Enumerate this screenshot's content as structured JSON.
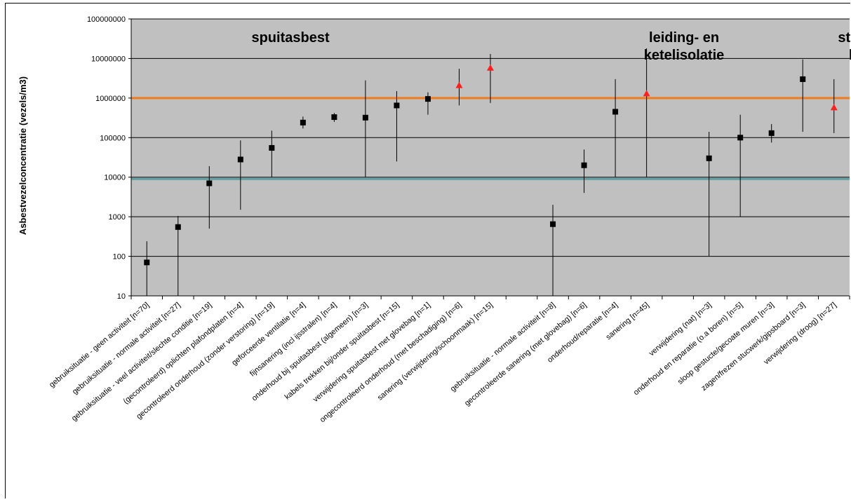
{
  "chart_data": {
    "type": "scatter",
    "ylabel": "Asbestvezelconcentratie (vezels/m3)",
    "yscale": "log",
    "ylim": [
      10,
      100000000
    ],
    "yticks": [
      {
        "value": 10,
        "label": "10"
      },
      {
        "value": 100,
        "label": "100"
      },
      {
        "value": 1000,
        "label": "1000"
      },
      {
        "value": 10000,
        "label": "10000"
      },
      {
        "value": 100000,
        "label": "100000"
      },
      {
        "value": 1000000,
        "label": "1000000"
      },
      {
        "value": 10000000,
        "label": "10000000"
      },
      {
        "value": 100000000,
        "label": "100000000"
      }
    ],
    "grid": true,
    "plot_background": "#c0c0c0",
    "group_labels": [
      {
        "lines": [
          "spuitasbest"
        ],
        "x_index": 4.6
      },
      {
        "lines": [
          "leiding- en",
          "ketelisolatie"
        ],
        "x_index": 17.2
      },
      {
        "lines": [
          "stucwerk",
          "board"
        ],
        "x_index": 23.1
      }
    ],
    "reference_lines": [
      {
        "value": 1000000,
        "color": "#f07c1e"
      },
      {
        "value": 9000,
        "color": "#5f9ea0"
      }
    ],
    "categories": [
      "gebruiksituatie - geen activiteit [n=70]",
      "gebruiksituatie - normale activiteit [n=27]",
      "gebruiksituatie - veel activiteit/slechte conditie [n=19]",
      "(gecontroleerd) oplichten plafondplaten [n=4]",
      "gecontroleerd onderhoud (zonder verstoring) [n=19]",
      "geforceerde ventilatie [n=4]",
      "fijnsanering (incl ijsstralen) [n=4]",
      "onderhoud bij spuitasbest (algemeen) [n=3]",
      "kabels trekken bij/onder spuitasbest [n=15]",
      "verwijdering spuitasbest met glovebag [n=1]",
      "ongecontroleerd onderhoud (met beschadiging) [n=6]",
      "sanering (verwijdering/schoonmaak) [n=15]",
      "",
      "gebruiksituatie - normale activiteit [n=8]",
      "gecontroleerde sanering (met glovebag) [n=6]",
      "onderhoud/reparatie [n=4]",
      "sanering [n=45]",
      "",
      "verwijdering  (nat) [n=3]",
      "onderhoud en reparatie (o.a boren) [n=5]",
      "sloop gestucte/gecoate muren [n=3]",
      "zagen/frezen stucwerk/gipsboard [n=3]",
      "verwijdering (droog) [n=27]"
    ],
    "series": [
      {
        "marker": "square",
        "color": "#000000",
        "points": [
          {
            "x": 0.0,
            "y": 70,
            "low": 10,
            "high": 240
          },
          {
            "x": 1.0,
            "y": 550,
            "low": 10,
            "high": 1050
          },
          {
            "x": 2.0,
            "y": 7000,
            "low": 500,
            "high": 19000
          },
          {
            "x": 3.0,
            "y": 28000,
            "low": 1500,
            "high": 85000
          },
          {
            "x": 4.0,
            "y": 55000,
            "low": 10000,
            "high": 150000
          },
          {
            "x": 5.0,
            "y": 240000,
            "low": 170000,
            "high": 340000
          },
          {
            "x": 6.0,
            "y": 330000,
            "low": 250000,
            "high": 420000
          },
          {
            "x": 7.0,
            "y": 320000,
            "low": 10000,
            "high": 2800000
          },
          {
            "x": 8.0,
            "y": 650000,
            "low": 25000,
            "high": 1500000
          },
          {
            "x": 9.0,
            "y": 950000,
            "low": 380000,
            "high": 1400000
          },
          {
            "x": 13.0,
            "y": 650,
            "low": 10,
            "high": 2000
          },
          {
            "x": 14.0,
            "y": 20000,
            "low": 4000,
            "high": 50000
          },
          {
            "x": 15.0,
            "y": 450000,
            "low": 10000,
            "high": 3000000
          },
          {
            "x": 18.0,
            "y": 30000,
            "low": 100,
            "high": 140000
          },
          {
            "x": 19.0,
            "y": 100000,
            "low": 1000,
            "high": 380000
          },
          {
            "x": 20.0,
            "y": 130000,
            "low": 75000,
            "high": 220000
          },
          {
            "x": 21.0,
            "y": 3000000,
            "low": 140000,
            "high": 9500000
          }
        ]
      },
      {
        "marker": "triangle",
        "color": "#ff2020",
        "points": [
          {
            "x": 10.0,
            "y": 2100000,
            "low": 650000,
            "high": 5500000
          },
          {
            "x": 11.0,
            "y": 5800000,
            "low": 750000,
            "high": 13000000
          },
          {
            "x": 16.0,
            "y": 1300000,
            "low": 10000,
            "high": 18000000
          },
          {
            "x": 22.0,
            "y": 580000,
            "low": 130000,
            "high": 3000000
          }
        ]
      }
    ]
  }
}
